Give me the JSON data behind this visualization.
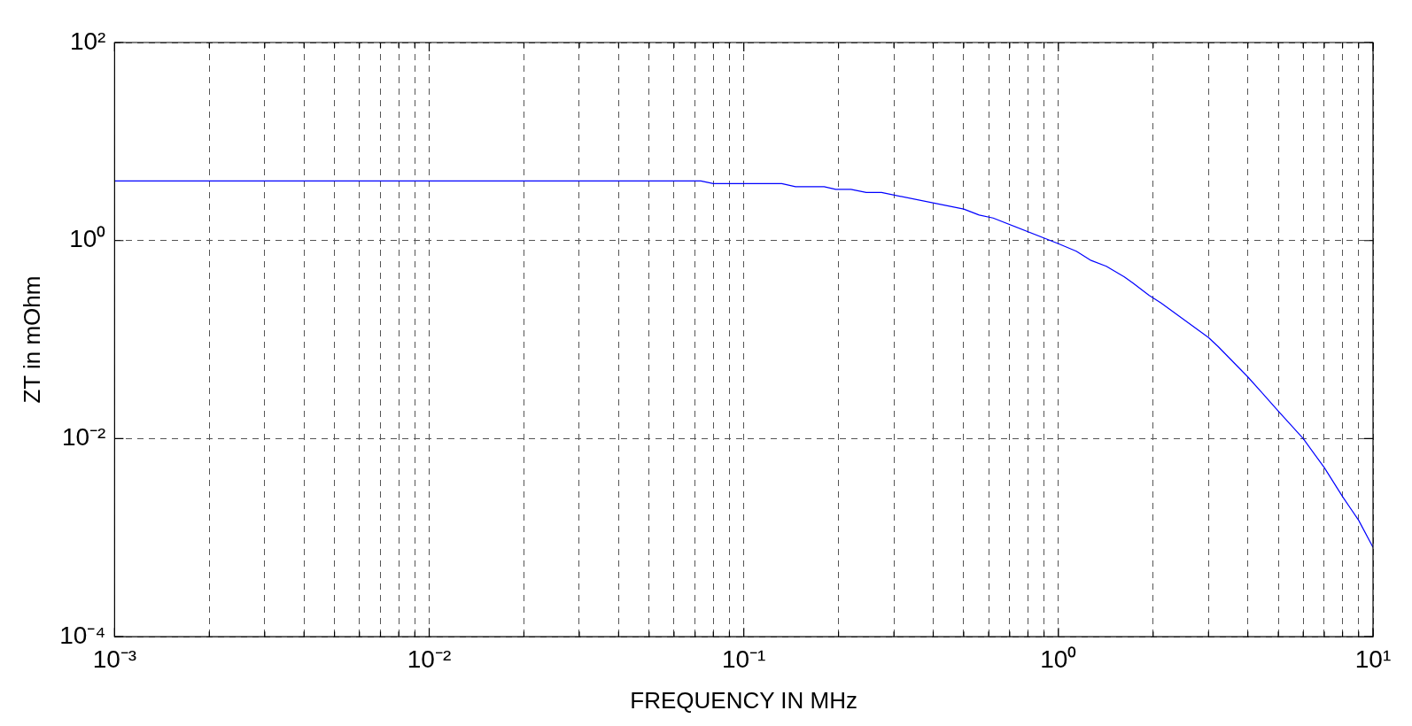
{
  "chart_data": {
    "type": "line",
    "xlabel": "FREQUENCY IN MHz",
    "ylabel": "ZT in mOhm",
    "series": [
      {
        "color": "#0000ff",
        "x": [
          0.001,
          0.073,
          0.08,
          0.132,
          0.146,
          0.18,
          0.196,
          0.219,
          0.245,
          0.274,
          0.5,
          0.56,
          0.62,
          1.0,
          1.14,
          1.27,
          1.42,
          1.62,
          1.73,
          1.94,
          2.12,
          3.0,
          3.22,
          4.0,
          4.4,
          5.0,
          6.0,
          7.0,
          8.0,
          9.0,
          10.0
        ],
        "values": [
          4.0,
          4.0,
          3.76,
          3.76,
          3.5,
          3.5,
          3.29,
          3.29,
          3.06,
          3.06,
          2.08,
          1.81,
          1.69,
          0.93,
          0.78,
          0.63,
          0.55,
          0.43,
          0.37,
          0.28,
          0.234,
          0.105,
          0.085,
          0.042,
          0.03,
          0.019,
          0.01,
          0.0051,
          0.0026,
          0.0015,
          0.0008
        ]
      }
    ],
    "xlim": [
      0.001,
      10
    ],
    "ylim": [
      0.0001,
      100
    ],
    "xticks": [
      {
        "value": 0.001,
        "label": "10⁻³"
      },
      {
        "value": 0.002,
        "label": null
      },
      {
        "value": 0.003,
        "label": null
      },
      {
        "value": 0.004,
        "label": null
      },
      {
        "value": 0.005,
        "label": null
      },
      {
        "value": 0.006,
        "label": null
      },
      {
        "value": 0.007,
        "label": null
      },
      {
        "value": 0.008,
        "label": null
      },
      {
        "value": 0.009,
        "label": null
      },
      {
        "value": 0.01,
        "label": "10⁻²"
      },
      {
        "value": 0.02,
        "label": null
      },
      {
        "value": 0.03,
        "label": null
      },
      {
        "value": 0.04,
        "label": null
      },
      {
        "value": 0.05,
        "label": null
      },
      {
        "value": 0.06,
        "label": null
      },
      {
        "value": 0.07,
        "label": null
      },
      {
        "value": 0.08,
        "label": null
      },
      {
        "value": 0.09,
        "label": null
      },
      {
        "value": 0.1,
        "label": "10⁻¹"
      },
      {
        "value": 0.2,
        "label": null
      },
      {
        "value": 0.3,
        "label": null
      },
      {
        "value": 0.4,
        "label": null
      },
      {
        "value": 0.5,
        "label": null
      },
      {
        "value": 0.6,
        "label": null
      },
      {
        "value": 0.7,
        "label": null
      },
      {
        "value": 0.8,
        "label": null
      },
      {
        "value": 0.9,
        "label": null
      },
      {
        "value": 1,
        "label": "10⁰"
      },
      {
        "value": 2,
        "label": null
      },
      {
        "value": 3,
        "label": null
      },
      {
        "value": 4,
        "label": null
      },
      {
        "value": 5,
        "label": null
      },
      {
        "value": 6,
        "label": null
      },
      {
        "value": 7,
        "label": null
      },
      {
        "value": 8,
        "label": null
      },
      {
        "value": 9,
        "label": null
      },
      {
        "value": 10,
        "label": "10¹"
      }
    ],
    "yticks": [
      {
        "value": 0.0001,
        "label": "10⁻⁴"
      },
      {
        "value": 0.01,
        "label": "10⁻²"
      },
      {
        "value": 1,
        "label": "10⁰"
      },
      {
        "value": 100,
        "label": "10²"
      }
    ],
    "log": "xy",
    "grid": true,
    "legend": false,
    "marker": "none",
    "line_style": "solid"
  }
}
